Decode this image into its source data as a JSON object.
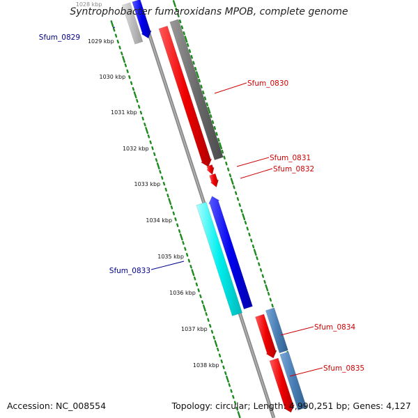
{
  "title": "Syntrophobacter fumaroxidans MPOB, complete genome",
  "footer": {
    "accession": "Accession: NC_008554",
    "summary": "Topology: circular; Length: 4,990,251 bp; Genes: 4,127"
  },
  "colors": {
    "backbone": "#8a8a8a",
    "tick": "#1d8a1d",
    "label_forward": "#cc0000",
    "label_reverse": "#00008b"
  },
  "scale_labels": [
    "1028 kbp",
    "1029 kbp",
    "1030 kbp",
    "1031 kbp",
    "1032 kbp",
    "1033 kbp",
    "1034 kbp",
    "1035 kbp",
    "1036 kbp",
    "1037 kbp",
    "1038 kbp"
  ],
  "genes": [
    {
      "label": "Sfum_0829",
      "strand": "reverse",
      "color": "#0000ee"
    },
    {
      "label": "Sfum_0830",
      "strand": "forward",
      "color": "#ee0000"
    },
    {
      "label": "Sfum_0831",
      "strand": "forward",
      "color": "#ee0000"
    },
    {
      "label": "Sfum_0832",
      "strand": "forward",
      "color": "#ee0000"
    },
    {
      "label": "Sfum_0833",
      "strand": "reverse",
      "color": "#0000ee"
    },
    {
      "label": "Sfum_0834",
      "strand": "forward",
      "color": "#ee0000"
    },
    {
      "label": "Sfum_0835",
      "strand": "forward",
      "color": "#ee0000"
    }
  ],
  "feature_bars": [
    {
      "type": "cds",
      "color": "#bdbdbd"
    },
    {
      "type": "cds",
      "color": "#6b6b6b"
    },
    {
      "type": "cds",
      "color": "#00eeee"
    },
    {
      "type": "cds",
      "color": "#4a7fb5"
    },
    {
      "type": "cds",
      "color": "#4a7fb5"
    }
  ]
}
